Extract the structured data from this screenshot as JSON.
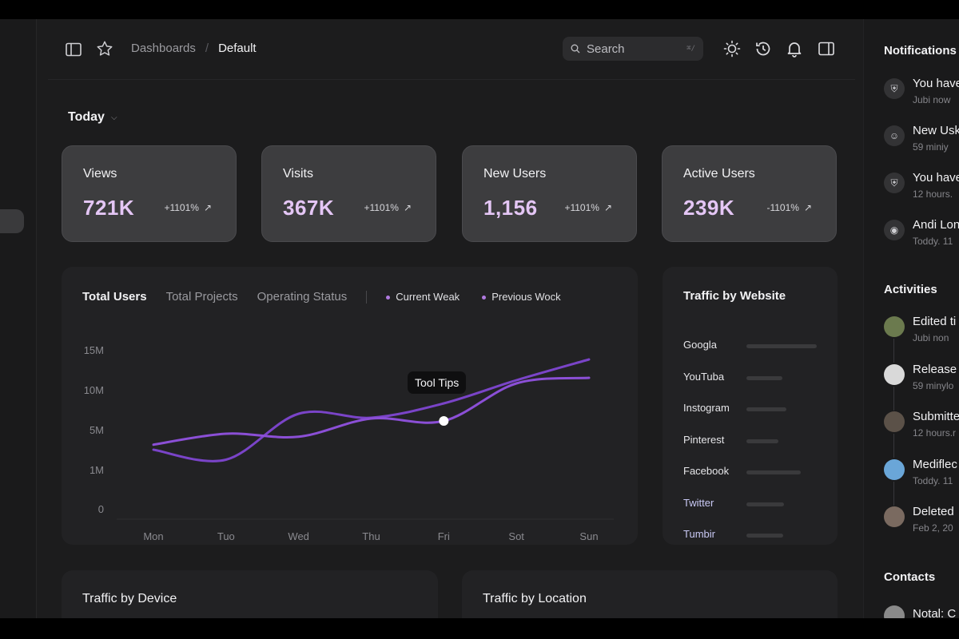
{
  "breadcrumb": {
    "parent": "Dashboards",
    "separator": "/",
    "current": "Default"
  },
  "search": {
    "placeholder": "Search",
    "shortcut": "⌘/"
  },
  "date_filter": {
    "label": "Today"
  },
  "stats": [
    {
      "label": "Views",
      "value": "721K",
      "change": "+1101%"
    },
    {
      "label": "Visits",
      "value": "367K",
      "change": "+1101%"
    },
    {
      "label": "New Users",
      "value": "1,156",
      "change": "+1101%"
    },
    {
      "label": "Active Users",
      "value": "239K",
      "change": "-1101%"
    }
  ],
  "users_chart": {
    "tabs": [
      "Total Users",
      "Total Projects",
      "Operating Status"
    ],
    "legend": [
      "Current Weak",
      "Previous Wock"
    ],
    "tooltip": "Tool Tips"
  },
  "chart_data": {
    "type": "line",
    "x": [
      "Mon",
      "Tuo",
      "Wed",
      "Thu",
      "Fri",
      "Sot",
      "Sun"
    ],
    "y_ticks": [
      "15M",
      "10M",
      "5M",
      "1M",
      "0"
    ],
    "series": [
      {
        "name": "Current Weak",
        "values": [
          3.0,
          2.0,
          7.0,
          6.5,
          8.3,
          11.2,
          13.8
        ]
      },
      {
        "name": "Previous Wock",
        "values": [
          3.5,
          4.6,
          4.3,
          6.4,
          6.1,
          10.8,
          11.5
        ]
      }
    ],
    "colors": [
      "#7a44c8",
      "#8b4fd6"
    ],
    "grid": false
  },
  "traffic_website": {
    "title": "Traffic by Website",
    "sites": [
      {
        "name": "Googla",
        "share": 0.88
      },
      {
        "name": "YouTuba",
        "share": 0.45
      },
      {
        "name": "Instogram",
        "share": 0.5
      },
      {
        "name": "Pinterest",
        "share": 0.4
      },
      {
        "name": "Facebook",
        "share": 0.68
      },
      {
        "name": "Twitter",
        "share": 0.47
      },
      {
        "name": "Tumbir",
        "share": 0.46
      }
    ]
  },
  "bottom_cards": {
    "device": "Traffic by Device",
    "location": "Traffic by Location"
  },
  "right_panel": {
    "notifications_title": "Notifications",
    "notifications": [
      {
        "text": "You have",
        "time": "Jubi now",
        "icon": "bug-icon"
      },
      {
        "text": "New Usk",
        "time": "59 miniy",
        "icon": "user-icon"
      },
      {
        "text": "You have",
        "time": "12 hours.",
        "icon": "bug-icon"
      },
      {
        "text": "Andi Lon",
        "time": "Toddy. 11",
        "icon": "broadcast-icon"
      }
    ],
    "activities_title": "Activities",
    "activities": [
      {
        "text": "Edited ti",
        "time": "Jubi non",
        "color": "#6b7a4e"
      },
      {
        "text": "Release",
        "time": "59 minylo",
        "color": "#d9d9d9"
      },
      {
        "text": "Submitte",
        "time": "12 hours.r",
        "color": "#5b5148"
      },
      {
        "text": "Mediflec",
        "time": "Toddy. 11",
        "color": "#6aa6d8"
      },
      {
        "text": "Deleted",
        "time": "Feb 2, 20",
        "color": "#7a6a60"
      }
    ],
    "contacts_title": "Contacts",
    "contacts": [
      {
        "text": "Notal: C",
        "color": "#8a8a8a"
      }
    ]
  }
}
